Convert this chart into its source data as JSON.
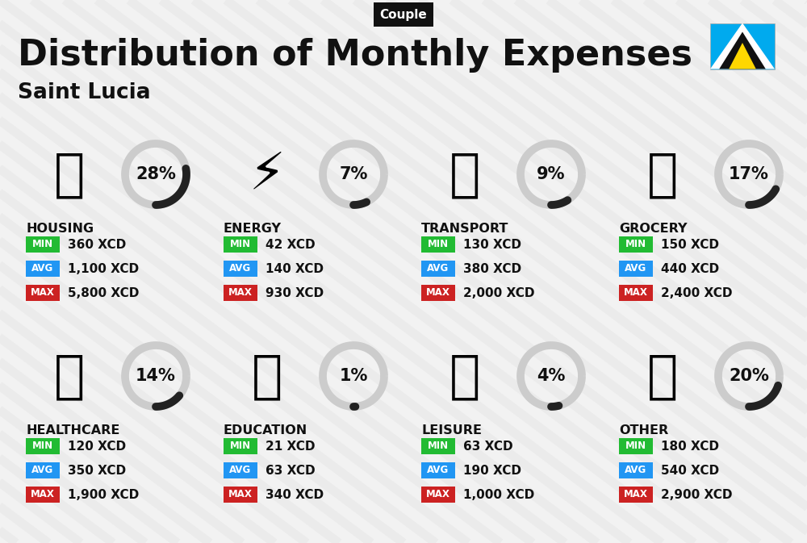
{
  "title": "Distribution of Monthly Expenses",
  "subtitle": "Saint Lucia",
  "badge": "Couple",
  "bg_color": "#f2f2f2",
  "categories": [
    {
      "name": "HOUSING",
      "pct": 28,
      "min_val": "360 XCD",
      "avg_val": "1,100 XCD",
      "max_val": "5,800 XCD",
      "row": 0,
      "col": 0
    },
    {
      "name": "ENERGY",
      "pct": 7,
      "min_val": "42 XCD",
      "avg_val": "140 XCD",
      "max_val": "930 XCD",
      "row": 0,
      "col": 1
    },
    {
      "name": "TRANSPORT",
      "pct": 9,
      "min_val": "130 XCD",
      "avg_val": "380 XCD",
      "max_val": "2,000 XCD",
      "row": 0,
      "col": 2
    },
    {
      "name": "GROCERY",
      "pct": 17,
      "min_val": "150 XCD",
      "avg_val": "440 XCD",
      "max_val": "2,400 XCD",
      "row": 0,
      "col": 3
    },
    {
      "name": "HEALTHCARE",
      "pct": 14,
      "min_val": "120 XCD",
      "avg_val": "350 XCD",
      "max_val": "1,900 XCD",
      "row": 1,
      "col": 0
    },
    {
      "name": "EDUCATION",
      "pct": 1,
      "min_val": "21 XCD",
      "avg_val": "63 XCD",
      "max_val": "340 XCD",
      "row": 1,
      "col": 1
    },
    {
      "name": "LEISURE",
      "pct": 4,
      "min_val": "63 XCD",
      "avg_val": "190 XCD",
      "max_val": "1,000 XCD",
      "row": 1,
      "col": 2
    },
    {
      "name": "OTHER",
      "pct": 20,
      "min_val": "180 XCD",
      "avg_val": "540 XCD",
      "max_val": "2,900 XCD",
      "row": 1,
      "col": 3
    }
  ],
  "min_color": "#22bb33",
  "avg_color": "#2196F3",
  "max_color": "#cc2222",
  "text_color": "#111111",
  "circle_bg": "#cccccc",
  "circle_fg": "#222222",
  "badge_bg": "#111111",
  "badge_fg": "#ffffff",
  "stripe_color": "#e6e6e6",
  "flag_blue": "#00AAEE",
  "flag_white": "#ffffff",
  "flag_black": "#111111",
  "flag_yellow": "#FFD700"
}
